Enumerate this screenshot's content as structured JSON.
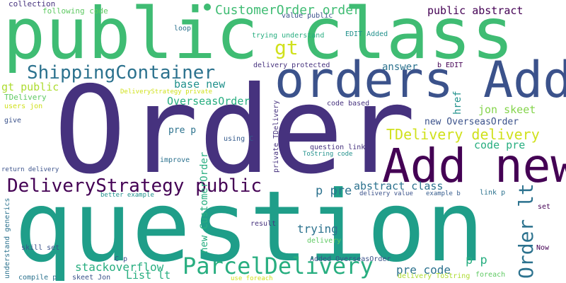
{
  "colors": {
    "dark_purple": "#440154",
    "purple": "#46327e",
    "indigo": "#3b528b",
    "blue": "#365c8d",
    "steel": "#2c728e",
    "teal": "#21918c",
    "sea": "#1f9e89",
    "green_teal": "#28ae80",
    "green": "#3fbc73",
    "leaf": "#5ec962",
    "lime": "#84d44b",
    "yellow_green": "#addc30",
    "yellow": "#d0e11c",
    "bright_yellow": "#fde725",
    "background": "#ffffff"
  },
  "words": {
    "order": "Order",
    "question": "question",
    "public_class": "public class",
    "orders_add": "orders Add",
    "add_new": "Add new",
    "shippingcontainer": "ShippingContainer",
    "parceldelivery": "ParcelDelivery",
    "deliverystrategy_public": "DeliveryStrategy public",
    "customerorder_order": "CustomerOrder order",
    "gt": "gt",
    "tdelivery_delivery": "TDelivery delivery",
    "order_lt": "Order lt",
    "public_abstract": "public abstract",
    "abstract_class": "abstract class",
    "new_customerorder": "new CustomerOrder",
    "stackoverflow": "stackoverflow",
    "p_pre": "p pre",
    "p_p": "p p",
    "pre_code": "pre code",
    "overseasorder": "OverseasOrder",
    "base_new": "base new",
    "jon_skeet": "jon skeet",
    "code_pre": "code pre",
    "new_overseasorder": "new OverseasOrder",
    "trying": "trying",
    "answer": "answer",
    "gt_public": "gt public",
    "href": "href",
    "list_lt": "List lt",
    "pre_p": "pre p",
    "collection": "collection",
    "following_code": "following code",
    "value_public": "value public",
    "loop": "loop",
    "trying_understand": "trying understand",
    "edit_added": "EDIT Added",
    "delivery_protected": "delivery protected",
    "b_edit": "b EDIT",
    "tdelivery": "TDelivery",
    "users_jon": "users jon",
    "deliverystrategy_private": "DeliveryStrategy private",
    "code_based": "code based",
    "give": "give",
    "using_c": "using C",
    "question_link": "question link",
    "tostring_code": "ToString code",
    "private_tdelivery": "private TDelivery",
    "improve": "improve",
    "return_delivery": "return delivery",
    "better_example": "better example",
    "delivery_value": "delivery value",
    "example_b": "example b",
    "link_p": "link p",
    "set": "set",
    "understand_generics": "understand generics",
    "result": "result",
    "delivery": "delivery",
    "now": "Now",
    "skill_set": "skill set",
    "c_p": "C p",
    "compile_p": "compile p",
    "skeet_jon": "skeet Jon",
    "added_overseasorder": "Added OverseasOrder",
    "use_foreach": "use foreach",
    "delivery_tostring": "delivery ToString",
    "foreach": "foreach"
  }
}
